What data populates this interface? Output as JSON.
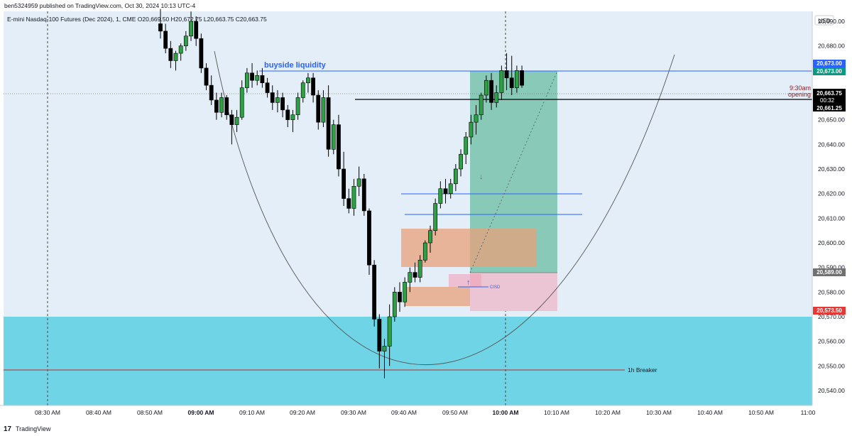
{
  "header": {
    "published_by": "ben5324959 published on TradingView.com, Oct 30, 2024 10:13 UTC-4",
    "symbol_line": "E-mini Nasdaq-100 Futures (Dec 2024), 1, CME  O20,669.50  H20,672.75  L20,663.75  C20,663.75"
  },
  "footer": {
    "brand": "TradingView"
  },
  "axis": {
    "currency": "USD",
    "y_ticks": [
      "20,690.00",
      "20,680.00",
      "20,670.00",
      "20,660.00",
      "20,650.00",
      "20,640.00",
      "20,630.00",
      "20,620.00",
      "20,610.00",
      "20,600.00",
      "20,590.00",
      "20,580.00",
      "20,570.00",
      "20,560.00",
      "20,550.00",
      "20,540.00"
    ],
    "x_ticks": [
      "08:30 AM",
      "08:40 AM",
      "08:50 AM",
      "09:00 AM",
      "09:10 AM",
      "09:20 AM",
      "09:30 AM",
      "09:40 AM",
      "09:50 AM",
      "10:00 AM",
      "10:10 AM",
      "10:20 AM",
      "10:30 AM",
      "10:40 AM",
      "10:50 AM",
      "11:00"
    ]
  },
  "price_labels": {
    "target1": "20,673.00",
    "target2": "20,673.00",
    "last": "20,663.75",
    "countdown": "00:32",
    "opening": "20,661.25",
    "entry": "20,589.00",
    "stop": "20,573.50"
  },
  "colors": {
    "upper_bg": "#e3eef9",
    "lower_zone": "#6fd4e6",
    "candle_up": "#2ea043",
    "candle_down": "#000000",
    "liquidity_line": "#2962ff",
    "profit_zone": "#89c9b8",
    "loss_zone": "#ebc5d3",
    "order_block": "#e8a07a",
    "breaker_line": "#c62828"
  },
  "annotations": {
    "buyside_liquidity": "buyside liquidity",
    "opening_time": "9:30am",
    "opening_word": "opening",
    "breaker": "1h Breaker",
    "cisd": "CISD"
  },
  "chart_data": {
    "type": "candlestick",
    "title": "E-mini Nasdaq-100 Futures (Dec 2024), 1, CME",
    "ylim": [
      20536,
      20696
    ],
    "timeframe": "1 minute",
    "x_start": "08:25 AM",
    "x_end": "11:00",
    "ohlc": [
      [
        20689,
        20695,
        20683,
        20686
      ],
      [
        20686,
        20689,
        20677,
        20679
      ],
      [
        20679,
        20682,
        20671,
        20674
      ],
      [
        20674,
        20678,
        20670,
        20677
      ],
      [
        20677,
        20681,
        20674,
        20680
      ],
      [
        20680,
        20686,
        20678,
        20684
      ],
      [
        20684,
        20694,
        20682,
        20690
      ],
      [
        20690,
        20692,
        20680,
        20683
      ],
      [
        20683,
        20685,
        20669,
        20671
      ],
      [
        20671,
        20673,
        20662,
        20664
      ],
      [
        20664,
        20668,
        20656,
        20658
      ],
      [
        20658,
        20661,
        20650,
        20653
      ],
      [
        20653,
        20661,
        20651,
        20659
      ],
      [
        20659,
        20660,
        20650,
        20652
      ],
      [
        20652,
        20654,
        20640,
        20648
      ],
      [
        20648,
        20654,
        20645,
        20651
      ],
      [
        20651,
        20666,
        20650,
        20663
      ],
      [
        20663,
        20671,
        20661,
        20669
      ],
      [
        20669,
        20673,
        20663,
        20666
      ],
      [
        20666,
        20670,
        20664,
        20668
      ],
      [
        20668,
        20671,
        20663,
        20665
      ],
      [
        20665,
        20667,
        20659,
        20661
      ],
      [
        20661,
        20664,
        20654,
        20657
      ],
      [
        20657,
        20662,
        20653,
        20659
      ],
      [
        20659,
        20661,
        20651,
        20654
      ],
      [
        20654,
        20656,
        20647,
        20650
      ],
      [
        20650,
        20654,
        20645,
        20652
      ],
      [
        20652,
        20661,
        20650,
        20659
      ],
      [
        20659,
        20666,
        20657,
        20665
      ],
      [
        20665,
        20669,
        20661,
        20667
      ],
      [
        20667,
        20669,
        20657,
        20660
      ],
      [
        20660,
        20662,
        20646,
        20649
      ],
      [
        20649,
        20662,
        20647,
        20659
      ],
      [
        20659,
        20664,
        20635,
        20638
      ],
      [
        20638,
        20650,
        20636,
        20648
      ],
      [
        20648,
        20652,
        20627,
        20630
      ],
      [
        20630,
        20637,
        20615,
        20618
      ],
      [
        20618,
        20622,
        20612,
        20614
      ],
      [
        20614,
        20626,
        20611,
        20623
      ],
      [
        20623,
        20631,
        20619,
        20626
      ],
      [
        20626,
        20628,
        20611,
        20613
      ],
      [
        20613,
        20614,
        20587,
        20591
      ],
      [
        20591,
        20593,
        20566,
        20569
      ],
      [
        20569,
        20571,
        20549,
        20556
      ],
      [
        20556,
        20561,
        20545,
        20558
      ],
      [
        20558,
        20575,
        20550,
        20570
      ],
      [
        20570,
        20582,
        20568,
        20580
      ],
      [
        20580,
        20584,
        20572,
        20576
      ],
      [
        20576,
        20586,
        20574,
        20584
      ],
      [
        20584,
        20590,
        20580,
        20588
      ],
      [
        20588,
        20592,
        20584,
        20586
      ],
      [
        20586,
        20595,
        20584,
        20593
      ],
      [
        20593,
        20601,
        20592,
        20600
      ],
      [
        20600,
        20607,
        20596,
        20605
      ],
      [
        20605,
        20618,
        20603,
        20616
      ],
      [
        20616,
        20625,
        20614,
        20622
      ],
      [
        20622,
        20626,
        20616,
        20620
      ],
      [
        20620,
        20626,
        20618,
        20624
      ],
      [
        20624,
        20632,
        20621,
        20630
      ],
      [
        20630,
        20638,
        20627,
        20636
      ],
      [
        20636,
        20645,
        20632,
        20643
      ],
      [
        20643,
        20652,
        20640,
        20649
      ],
      [
        20649,
        20656,
        20644,
        20652
      ],
      [
        20652,
        20661,
        20650,
        20660
      ],
      [
        20660,
        20668,
        20657,
        20666
      ],
      [
        20666,
        20669,
        20654,
        20657
      ],
      [
        20657,
        20664,
        20655,
        20661
      ],
      [
        20661,
        20672,
        20658,
        20670
      ],
      [
        20670,
        20677,
        20662,
        20667
      ],
      [
        20667,
        20676,
        20660,
        20663
      ],
      [
        20663,
        20672,
        20661,
        20670
      ],
      [
        20670,
        20672,
        20663,
        20664
      ]
    ],
    "levels": [
      {
        "name": "buyside liquidity",
        "price": 20673.0
      },
      {
        "name": "9:30am opening",
        "price": 20661.25
      },
      {
        "name": "1h Breaker",
        "price": 20548.5
      }
    ],
    "zones": [
      {
        "name": "profit target zone",
        "from": 20589,
        "to": 20673
      },
      {
        "name": "stop zone",
        "from": 20573.5,
        "to": 20589
      },
      {
        "name": "1h zone",
        "from": 20536,
        "to": 20571
      }
    ]
  }
}
